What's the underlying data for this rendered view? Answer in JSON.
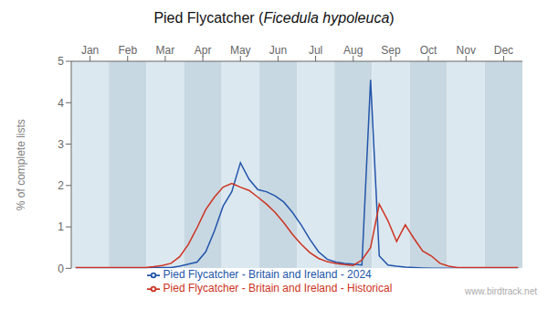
{
  "chart_data": {
    "type": "line",
    "title": "Pied Flycatcher (Ficedula hypoleuca)",
    "y_label": "% of complete lists",
    "annotations": [
      "www.birdtrack.net"
    ],
    "x": [
      1,
      2,
      3,
      4,
      5,
      6,
      7,
      8,
      9,
      10,
      11,
      12,
      13,
      14,
      15,
      16,
      17,
      18,
      19,
      20,
      21,
      22,
      23,
      24,
      25,
      26,
      27,
      28,
      29,
      30,
      31,
      32,
      33,
      34,
      35,
      36,
      37,
      38,
      39,
      40,
      41,
      42,
      43,
      44,
      45,
      46,
      47,
      48,
      49,
      50,
      51,
      52
    ],
    "series": [
      {
        "name": "Pied Flycatcher - Britain and Ireland - 2024",
        "color": "#2255aa",
        "values": [
          0.0,
          0.0,
          0.0,
          0.0,
          0.0,
          0.0,
          0.0,
          0.0,
          0.0,
          0.02,
          0.02,
          0.02,
          0.05,
          0.1,
          0.15,
          0.4,
          0.9,
          1.5,
          1.85,
          2.55,
          2.15,
          1.9,
          1.85,
          1.75,
          1.6,
          1.35,
          1.05,
          0.7,
          0.4,
          0.22,
          0.15,
          0.12,
          0.1,
          0.08,
          4.55,
          0.3,
          0.08,
          0.05,
          0.03,
          0.02,
          0.01,
          0.0,
          0.0,
          0.0,
          0.0,
          0.0,
          0.0,
          0.0,
          0.0,
          0.0,
          0.0,
          0.0
        ]
      },
      {
        "name": "Pied Flycatcher - Britain and Ireland - Historical",
        "color": "#cc3322",
        "values": [
          0.02,
          0.02,
          0.02,
          0.02,
          0.02,
          0.02,
          0.02,
          0.02,
          0.02,
          0.04,
          0.07,
          0.12,
          0.28,
          0.58,
          0.98,
          1.42,
          1.72,
          1.96,
          2.05,
          1.96,
          1.88,
          1.72,
          1.55,
          1.35,
          1.1,
          0.82,
          0.58,
          0.38,
          0.24,
          0.16,
          0.12,
          0.09,
          0.07,
          0.2,
          0.5,
          1.55,
          1.15,
          0.65,
          1.05,
          0.72,
          0.42,
          0.3,
          0.12,
          0.05,
          0.02,
          0.02,
          0.02,
          0.02,
          0.02,
          0.02,
          0.02,
          0.02
        ]
      }
    ],
    "xlim": [
      0.5,
      52.5
    ],
    "xticks": [
      {
        "value": 2.665,
        "label": "Jan"
      },
      {
        "value": 7.0,
        "label": "Feb"
      },
      {
        "value": 11.335,
        "label": "Mar"
      },
      {
        "value": 15.665,
        "label": "Apr"
      },
      {
        "value": 20.0,
        "label": "May"
      },
      {
        "value": 24.335,
        "label": "Jun"
      },
      {
        "value": 28.665,
        "label": "Jul"
      },
      {
        "value": 33.0,
        "label": "Aug"
      },
      {
        "value": 37.335,
        "label": "Sep"
      },
      {
        "value": 41.665,
        "label": "Oct"
      },
      {
        "value": 46.0,
        "label": "Nov"
      },
      {
        "value": 50.335,
        "label": "Dec"
      }
    ],
    "ylim": [
      0,
      5
    ],
    "yticks": [
      0,
      1,
      2,
      3,
      4,
      5
    ],
    "grid": true,
    "legend": "bottom"
  }
}
